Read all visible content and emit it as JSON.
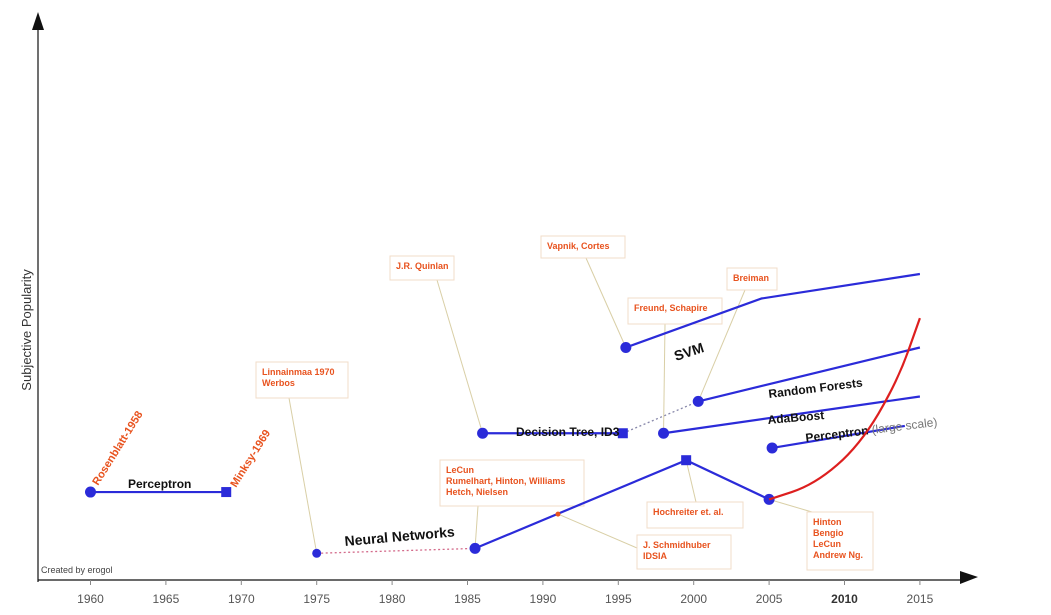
{
  "chart_data": {
    "type": "line",
    "title": "",
    "xlabel": "",
    "ylabel": "Subjective Popularity",
    "credit": "Created by erogol",
    "xlim": [
      1955,
      2017
    ],
    "ylim": [
      0,
      100
    ],
    "xticks": [
      {
        "value": 1960,
        "label": "1960"
      },
      {
        "value": 1965,
        "label": "1965"
      },
      {
        "value": 1970,
        "label": "1970"
      },
      {
        "value": 1975,
        "label": "1975"
      },
      {
        "value": 1980,
        "label": "1980"
      },
      {
        "value": 1985,
        "label": "1985"
      },
      {
        "value": 1990,
        "label": "1990"
      },
      {
        "value": 1995,
        "label": "1995"
      },
      {
        "value": 2000,
        "label": "2000"
      },
      {
        "value": 2005,
        "label": "2005"
      },
      {
        "value": 2010,
        "label": "2010"
      },
      {
        "value": 2015,
        "label": "2015"
      }
    ],
    "colors": {
      "series": "#2b2bd9",
      "deep_learning": "#dd1f1f",
      "annotation": "#e8531f",
      "leader": "#d9cfa6",
      "box_border": "#f2dcc8",
      "axis": "#111111"
    },
    "series": [
      {
        "name": "Perceptron",
        "points": [
          [
            1960,
            15.5
          ],
          [
            1969,
            15.5
          ]
        ],
        "marker_start": "circle",
        "marker_end": "square"
      },
      {
        "name": "Neural Networks",
        "points": [
          [
            1985.5,
            4
          ],
          [
            1999.5,
            22
          ],
          [
            2005,
            14
          ]
        ],
        "marker_start": "circle",
        "marker_mid": "square",
        "marker_end": "circle"
      },
      {
        "name": "Decision Tree, ID3",
        "points": [
          [
            1986,
            27.5
          ],
          [
            1995.3,
            27.5
          ]
        ],
        "marker_start": "circle",
        "marker_end": "square"
      },
      {
        "name": "SVM",
        "points": [
          [
            1995.5,
            45
          ],
          [
            2004.5,
            55
          ],
          [
            2015,
            60
          ]
        ],
        "marker_start": "circle"
      },
      {
        "name": "Random Forests",
        "points": [
          [
            2000.3,
            34
          ],
          [
            2015,
            45
          ]
        ],
        "marker_start": "circle"
      },
      {
        "name": "AdaBoost",
        "points": [
          [
            1998,
            27.5
          ],
          [
            2015,
            35
          ]
        ],
        "marker_start": "circle"
      },
      {
        "name": "Perceptron",
        "name_suffix": "(large scale)",
        "points": [
          [
            2005.2,
            24.5
          ],
          [
            2014,
            29
          ]
        ],
        "marker_start": "circle"
      },
      {
        "name": "",
        "points": [
          [
            2005,
            14
          ],
          [
            2008,
            17
          ],
          [
            2011,
            25
          ],
          [
            2013.5,
            38
          ],
          [
            2015,
            51
          ]
        ],
        "style": "deep-learning-curve"
      }
    ],
    "connectors": [
      {
        "from": [
          1975,
          3
        ],
        "to": [
          1985.5,
          4
        ],
        "style": "dotted",
        "color": "#d36a8a"
      },
      {
        "from": [
          1995.3,
          27.5
        ],
        "to": [
          2000.3,
          34
        ],
        "style": "dotted",
        "color": "#8888aa"
      }
    ],
    "annotations": [
      {
        "text": "Rosenblatt-1958",
        "point": [
          1960,
          15.5
        ],
        "rotated": true
      },
      {
        "text": "Minksy-1969",
        "point": [
          1969,
          15.5
        ],
        "rotated": true
      },
      {
        "lines": [
          "Linnainmaa 1970",
          "Werbos"
        ],
        "point": [
          1975,
          3
        ]
      },
      {
        "lines": [
          "J.R. Quinlan"
        ],
        "point": [
          1986,
          27.5
        ]
      },
      {
        "lines": [
          "LeCun",
          "Rumelhart, Hinton, Williams",
          "Hetch, Nielsen"
        ],
        "point": [
          1985.5,
          4
        ]
      },
      {
        "lines": [
          "Vapnik, Cortes"
        ],
        "point": [
          1995.5,
          45
        ]
      },
      {
        "lines": [
          "Freund, Schapire"
        ],
        "point": [
          1998,
          27.5
        ]
      },
      {
        "lines": [
          "Breiman"
        ],
        "point": [
          2000.3,
          34
        ]
      },
      {
        "lines": [
          "Hochreiter et. al."
        ],
        "point": [
          1999.5,
          22
        ]
      },
      {
        "lines": [
          "J. Schmidhuber",
          "IDSIA"
        ],
        "point": [
          1991,
          11
        ]
      },
      {
        "lines": [
          "Hinton",
          "Bengio",
          "LeCun",
          "Andrew Ng."
        ],
        "point": [
          2005,
          14
        ]
      }
    ]
  }
}
